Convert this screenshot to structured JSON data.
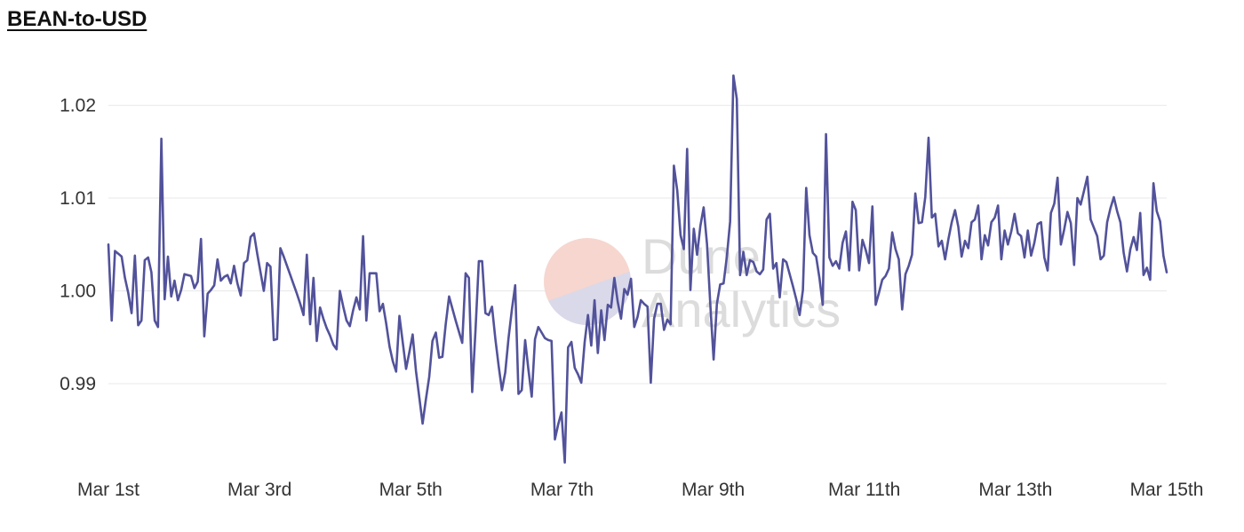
{
  "chart_data": {
    "type": "line",
    "title": "BEAN-to-USD",
    "xlabel": "",
    "ylabel": "",
    "x_ticks": [
      "Mar 1st",
      "Mar 3rd",
      "Mar 5th",
      "Mar 7th",
      "Mar 9th",
      "Mar 11th",
      "Mar 13th",
      "Mar 15th"
    ],
    "y_ticks": [
      "0.99",
      "1.00",
      "1.01",
      "1.02"
    ],
    "xlim": [
      "2023-03-01",
      "2023-03-15"
    ],
    "ylim": [
      0.981,
      1.0235
    ],
    "grid": "horizontal",
    "legend": "none",
    "watermark": [
      "Dune",
      "Analytics"
    ],
    "colors": {
      "line": "#52529b",
      "grid": "#e8e8e8",
      "watermark_red": "#f6d6cf",
      "watermark_blue": "#d9d9ea"
    },
    "series": [
      {
        "values": [
          1.005,
          0.9968,
          1.0043,
          1.004,
          1.0037,
          1.0014,
          0.9998,
          0.9976,
          1.0038,
          0.9963,
          0.9968,
          1.0033,
          1.0036,
          1.002,
          0.9968,
          0.9961,
          1.0164,
          0.9991,
          1.0037,
          0.9994,
          1.0011,
          0.999,
          1.0001,
          1.0018,
          1.0017,
          1.0016,
          1.0003,
          1.001,
          1.0056,
          0.9951,
          0.9997,
          1.0001,
          1.0006,
          1.0034,
          1.0011,
          1.0015,
          1.0017,
          1.0008,
          1.0027,
          1.0008,
          0.9995,
          1.003,
          1.0033,
          1.0058,
          1.0062,
          1.004,
          1.002,
          1.0,
          1.003,
          1.0026,
          0.9947,
          0.9948,
          1.0046,
          1.0037,
          1.0027,
          1.0017,
          1.0007,
          0.9997,
          0.9986,
          0.9974,
          1.0039,
          0.9964,
          1.0014,
          0.9946,
          0.9982,
          0.997,
          0.996,
          0.9952,
          0.9942,
          0.9937,
          1.0,
          0.9983,
          0.9968,
          0.9962,
          0.9979,
          0.9993,
          0.998,
          1.0059,
          0.9968,
          1.0019,
          1.0019,
          1.0019,
          0.9978,
          0.9986,
          0.9965,
          0.994,
          0.9924,
          0.9913,
          0.9973,
          0.9945,
          0.9916,
          0.9934,
          0.9953,
          0.9914,
          0.9885,
          0.9857,
          0.9883,
          0.9907,
          0.9946,
          0.9955,
          0.9928,
          0.9929,
          0.9964,
          0.9994,
          0.9981,
          0.9968,
          0.9956,
          0.9944,
          1.0019,
          1.0014,
          0.9891,
          0.9957,
          1.0032,
          1.0032,
          0.9976,
          0.9974,
          0.9983,
          0.9948,
          0.9919,
          0.9893,
          0.9912,
          0.9949,
          0.998,
          1.0006,
          0.9889,
          0.9893,
          0.9947,
          0.9915,
          0.9886,
          0.9948,
          0.9961,
          0.9955,
          0.9949,
          0.9947,
          0.9946,
          0.984,
          0.9856,
          0.9869,
          0.9815,
          0.9939,
          0.9945,
          0.9917,
          0.991,
          0.9901,
          0.9945,
          0.9974,
          0.9941,
          0.999,
          0.9933,
          0.9979,
          0.9947,
          0.9985,
          0.9982,
          1.0014,
          0.9988,
          0.997,
          1.0002,
          0.9996,
          1.0013,
          0.9961,
          0.9972,
          0.999,
          0.9986,
          0.9983,
          0.9901,
          0.997,
          0.9986,
          0.9986,
          0.9958,
          0.9969,
          0.9964,
          1.0135,
          1.0108,
          1.006,
          1.0045,
          1.0153,
          1.0001,
          1.0067,
          1.0039,
          1.007,
          1.009,
          1.005,
          0.9985,
          0.9926,
          0.9986,
          1.0007,
          1.0008,
          1.0037,
          1.0075,
          1.0232,
          1.0207,
          1.0017,
          1.0042,
          1.0017,
          1.0033,
          1.0031,
          1.0021,
          1.0018,
          1.0023,
          1.0077,
          1.0083,
          1.0024,
          1.003,
          0.9993,
          1.0034,
          1.0031,
          1.0018,
          1.0005,
          0.9991,
          0.9974,
          1.0001,
          1.0111,
          1.006,
          1.0041,
          1.0037,
          1.0014,
          0.9985,
          1.0169,
          1.0036,
          1.0027,
          1.0032,
          1.0024,
          1.0052,
          1.0064,
          1.0022,
          1.0096,
          1.0087,
          1.0022,
          1.0055,
          1.0044,
          1.003,
          1.0091,
          0.9985,
          0.9998,
          1.0012,
          1.0016,
          1.0024,
          1.0063,
          1.0045,
          1.0034,
          0.998,
          1.0018,
          1.0027,
          1.0039,
          1.0105,
          1.0073,
          1.0074,
          1.0101,
          1.0165,
          1.0079,
          1.0083,
          1.0048,
          1.0054,
          1.0034,
          1.0056,
          1.0074,
          1.0087,
          1.0069,
          1.0037,
          1.0054,
          1.0046,
          1.0074,
          1.0077,
          1.0092,
          1.0034,
          1.006,
          1.0049,
          1.0074,
          1.0079,
          1.0092,
          1.0034,
          1.0065,
          1.005,
          1.0064,
          1.0083,
          1.0062,
          1.0059,
          1.0036,
          1.0065,
          1.0038,
          1.0052,
          1.0072,
          1.0074,
          1.0036,
          1.0022,
          1.0084,
          1.0094,
          1.0122,
          1.005,
          1.0066,
          1.0085,
          1.0073,
          1.0028,
          1.01,
          1.0093,
          1.0108,
          1.0123,
          1.0077,
          1.0068,
          1.0059,
          1.0034,
          1.0038,
          1.0074,
          1.0089,
          1.0101,
          1.0086,
          1.0074,
          1.0041,
          1.0021,
          1.0045,
          1.0058,
          1.0044,
          1.0084,
          1.0017,
          1.0025,
          1.0012,
          1.0116,
          1.0086,
          1.0075,
          1.0038,
          1.002
        ]
      }
    ]
  }
}
